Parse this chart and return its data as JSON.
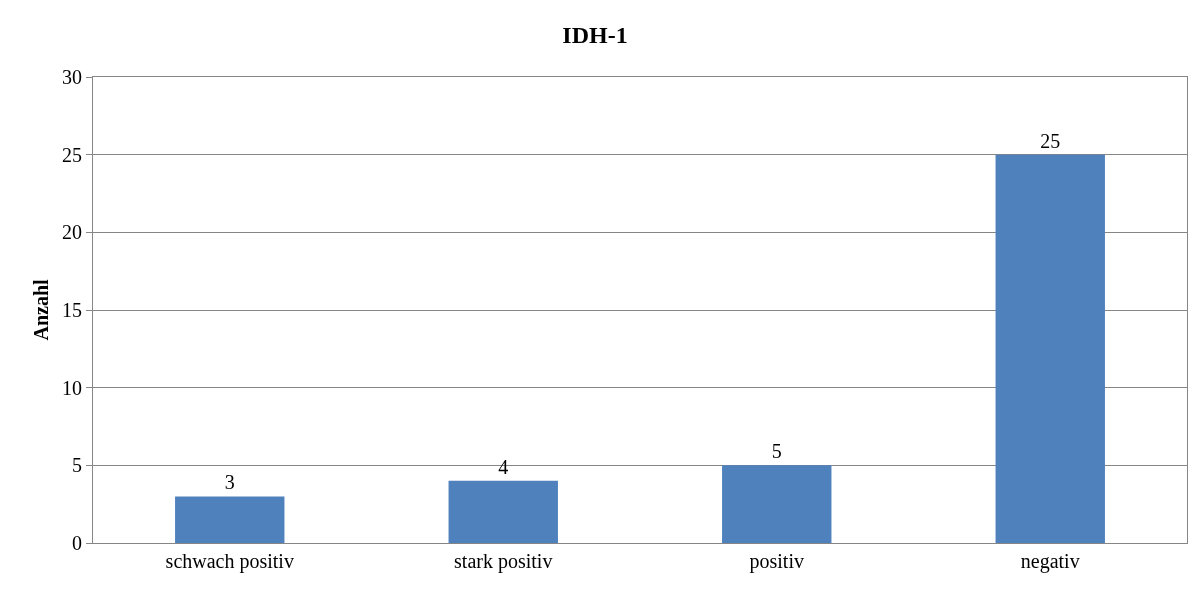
{
  "chart_data": {
    "type": "bar",
    "title": "IDH-1",
    "ylabel": "Anzahl",
    "categories": [
      "schwach positiv",
      "stark positiv",
      "positiv",
      "negativ"
    ],
    "values": [
      3,
      4,
      5,
      25
    ],
    "color": "#4f81bd",
    "ylim": [
      0,
      30
    ],
    "yticks": [
      0,
      5,
      10,
      15,
      20,
      25,
      30
    ],
    "grid": "y",
    "data_labels": true,
    "legend": false
  }
}
